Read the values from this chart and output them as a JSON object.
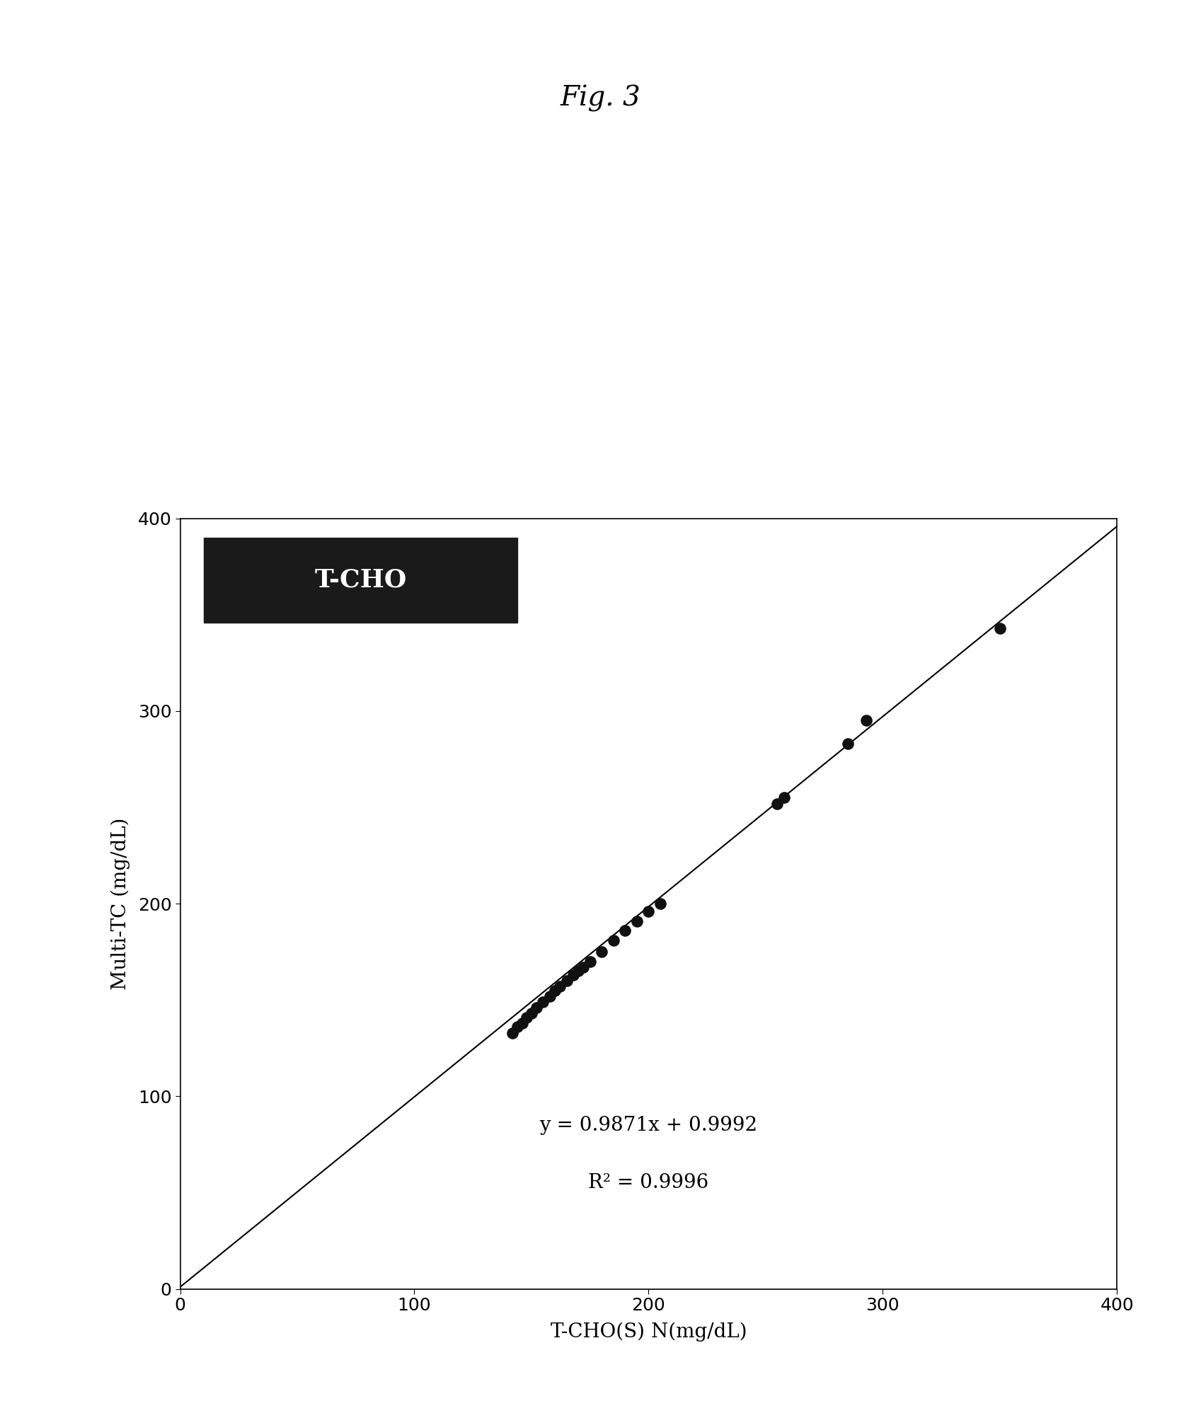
{
  "title": "Fig. 3",
  "xlabel": "T-CHO(S) N(mg/dL)",
  "ylabel": "Multi-TC (mg/dL)",
  "xlim": [
    0,
    400
  ],
  "ylim": [
    0,
    400
  ],
  "xticks": [
    0,
    100,
    200,
    300,
    400
  ],
  "yticks": [
    0,
    100,
    200,
    300,
    400
  ],
  "scatter_x": [
    142,
    144,
    146,
    148,
    150,
    152,
    155,
    158,
    160,
    162,
    165,
    168,
    170,
    172,
    175,
    180,
    185,
    190,
    195,
    200,
    205,
    255,
    258,
    285,
    293,
    350
  ],
  "scatter_y": [
    133,
    136,
    138,
    141,
    143,
    146,
    149,
    152,
    155,
    157,
    160,
    163,
    165,
    167,
    170,
    175,
    181,
    186,
    191,
    196,
    200,
    252,
    255,
    283,
    295,
    343
  ],
  "slope": 0.9871,
  "intercept": 0.9992,
  "r_squared": 0.9996,
  "equation_text": "y = 0.9871x + 0.9992",
  "r2_text": "R² = 0.9996",
  "label_text": "T-CHO",
  "label_box_color": "#1a1a1a",
  "label_text_color": "#ffffff",
  "dot_color": "#111111",
  "line_color": "#000000",
  "background_color": "#ffffff",
  "title_fontsize": 28,
  "axis_label_fontsize": 20,
  "tick_fontsize": 18,
  "equation_fontsize": 20,
  "label_fontsize": 26,
  "fig_width": 16.97,
  "fig_height": 19.8,
  "fig_dpi": 100
}
